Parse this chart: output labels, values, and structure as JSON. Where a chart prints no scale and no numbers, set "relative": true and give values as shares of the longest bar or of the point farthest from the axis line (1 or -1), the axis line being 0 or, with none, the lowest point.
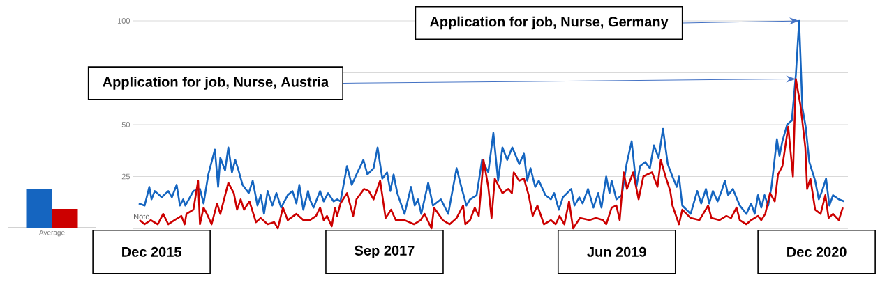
{
  "chart_data": [
    {
      "type": "line",
      "xlim": [
        "2015-10-10",
        "2021-02-25"
      ],
      "ylim": [
        0,
        100
      ],
      "xticks": [
        {
          "value": "2015-12-01",
          "label": "Dec 2015"
        },
        {
          "value": "2017-09-01",
          "label": "Sep 2017"
        },
        {
          "value": "2019-06-01",
          "label": "Jun 2019"
        },
        {
          "value": "2020-12-01",
          "label": "Dec 2020"
        }
      ],
      "yticks": [
        25,
        50,
        {
          "value": 75,
          "label": null
        },
        100
      ],
      "grid": "y",
      "annotations": [
        "Application for job, Nurse, Germany",
        "Application for job, Nurse, Austria",
        "Note"
      ],
      "series": [
        {
          "color": "#1565c0",
          "x": [
            "2015-10-27",
            "2015-11-12",
            "2015-11-25",
            "2015-12-01",
            "2015-12-10",
            "2015-12-29",
            "2016-01-16",
            "2016-01-26",
            "2016-02-08",
            "2016-02-17",
            "2016-02-26",
            "2016-03-03",
            "2016-03-25",
            "2016-04-12",
            "2016-04-22",
            "2016-05-05",
            "2016-05-23",
            "2016-06-01",
            "2016-06-07",
            "2016-06-20",
            "2016-06-29",
            "2016-07-09",
            "2016-07-18",
            "2016-07-27",
            "2016-08-07",
            "2016-08-24",
            "2016-09-04",
            "2016-09-17",
            "2016-09-26",
            "2016-10-05",
            "2016-10-15",
            "2016-10-28",
            "2016-11-08",
            "2016-11-21",
            "2016-12-09",
            "2016-12-22",
            "2017-01-02",
            "2017-01-10",
            "2017-01-21",
            "2017-02-03",
            "2017-02-08",
            "2017-02-18",
            "2017-03-08",
            "2017-03-18",
            "2017-03-30",
            "2017-04-14",
            "2017-04-24",
            "2017-05-03",
            "2017-05-21",
            "2017-06-03",
            "2017-06-16",
            "2017-07-05",
            "2017-07-16",
            "2017-08-02",
            "2017-08-13",
            "2017-08-26",
            "2017-09-08",
            "2017-09-17",
            "2017-09-26",
            "2017-10-06",
            "2017-10-26",
            "2017-11-13",
            "2017-11-23",
            "2017-12-02",
            "2017-12-11",
            "2017-12-30",
            "2018-01-12",
            "2018-02-03",
            "2018-02-23",
            "2018-03-18",
            "2018-03-31",
            "2018-04-14",
            "2018-04-24",
            "2018-05-12",
            "2018-05-27",
            "2018-06-13",
            "2018-06-27",
            "2018-07-10",
            "2018-07-22",
            "2018-08-04",
            "2018-08-18",
            "2018-09-06",
            "2018-09-19",
            "2018-09-28",
            "2018-10-07",
            "2018-10-20",
            "2018-10-30",
            "2018-11-17",
            "2018-12-02",
            "2018-12-11",
            "2018-12-24",
            "2019-01-04",
            "2019-01-27",
            "2019-02-05",
            "2019-02-18",
            "2019-02-27",
            "2019-03-14",
            "2019-03-29",
            "2019-04-11",
            "2019-04-20",
            "2019-05-03",
            "2019-05-12",
            "2019-05-18",
            "2019-05-31",
            "2019-06-15",
            "2019-06-28",
            "2019-07-12",
            "2019-07-25",
            "2019-08-04",
            "2019-08-18",
            "2019-08-31",
            "2019-09-11",
            "2019-09-24",
            "2019-10-06",
            "2019-10-19",
            "2019-11-01",
            "2019-11-13",
            "2019-11-19",
            "2019-11-28",
            "2019-12-21",
            "2020-01-08",
            "2020-01-19",
            "2020-02-01",
            "2020-02-10",
            "2020-02-20",
            "2020-03-04",
            "2020-03-15",
            "2020-03-24",
            "2020-04-02",
            "2020-04-15",
            "2020-05-04",
            "2020-05-22",
            "2020-06-04",
            "2020-06-14",
            "2020-06-23",
            "2020-07-02",
            "2020-07-11",
            "2020-07-21",
            "2020-07-30",
            "2020-08-14",
            "2020-08-21",
            "2020-08-29",
            "2020-09-11",
            "2020-09-24",
            "2020-10-05",
            "2020-10-14",
            "2020-10-23",
            "2020-11-01",
            "2020-11-11",
            "2020-11-27",
            "2020-12-07",
            "2020-12-16",
            "2020-12-27",
            "2021-01-05",
            "2021-01-15",
            "2021-01-31",
            "2021-02-15"
          ],
          "values": [
            12,
            11,
            20,
            14,
            18,
            15,
            18,
            15,
            21,
            11,
            14,
            11,
            18,
            19,
            12,
            26,
            38,
            20,
            34,
            28,
            39,
            27,
            33,
            28,
            21,
            17,
            23,
            11,
            16,
            7,
            18,
            11,
            17,
            10,
            16,
            18,
            12,
            21,
            9,
            18,
            14,
            10,
            18,
            13,
            17,
            13,
            14,
            13,
            30,
            21,
            26,
            33,
            26,
            29,
            39,
            24,
            27,
            18,
            26,
            17,
            7,
            20,
            11,
            14,
            7,
            22,
            11,
            14,
            7,
            29,
            20,
            11,
            14,
            16,
            33,
            27,
            46,
            23,
            39,
            33,
            39,
            31,
            36,
            23,
            29,
            20,
            23,
            16,
            14,
            17,
            9,
            15,
            19,
            11,
            15,
            12,
            19,
            10,
            17,
            10,
            25,
            17,
            23,
            14,
            16,
            31,
            42,
            20,
            30,
            32,
            29,
            40,
            34,
            48,
            31,
            25,
            20,
            25,
            11,
            7,
            18,
            12,
            19,
            12,
            18,
            13,
            18,
            23,
            16,
            19,
            11,
            7,
            12,
            7,
            16,
            10,
            16,
            11,
            20,
            43,
            35,
            42,
            50,
            52,
            74,
            100,
            58,
            49,
            32,
            23,
            14,
            18,
            24,
            11,
            16,
            14,
            13
          ]
        },
        {
          "color": "#cc0000",
          "x": [
            "2015-10-29",
            "2015-11-12",
            "2015-11-29",
            "2015-12-18",
            "2016-01-02",
            "2016-01-16",
            "2016-02-02",
            "2016-02-21",
            "2016-03-01",
            "2016-03-06",
            "2016-03-25",
            "2016-04-07",
            "2016-04-12",
            "2016-04-22",
            "2016-05-01",
            "2016-05-14",
            "2016-05-29",
            "2016-06-07",
            "2016-06-29",
            "2016-07-14",
            "2016-07-23",
            "2016-08-02",
            "2016-08-11",
            "2016-08-26",
            "2016-09-13",
            "2016-09-26",
            "2016-10-15",
            "2016-11-02",
            "2016-11-12",
            "2016-11-26",
            "2016-12-09",
            "2017-01-02",
            "2017-01-21",
            "2017-02-08",
            "2017-02-25",
            "2017-03-08",
            "2017-03-18",
            "2017-03-27",
            "2017-04-09",
            "2017-04-18",
            "2017-04-24",
            "2017-05-03",
            "2017-05-21",
            "2017-06-07",
            "2017-06-16",
            "2017-07-07",
            "2017-07-20",
            "2017-08-02",
            "2017-08-20",
            "2017-09-04",
            "2017-09-19",
            "2017-10-02",
            "2017-10-26",
            "2017-11-21",
            "2017-12-09",
            "2017-12-20",
            "2018-01-08",
            "2018-01-15",
            "2018-02-08",
            "2018-02-27",
            "2018-03-18",
            "2018-04-05",
            "2018-04-11",
            "2018-04-24",
            "2018-05-07",
            "2018-05-18",
            "2018-05-31",
            "2018-06-13",
            "2018-06-22",
            "2018-07-01",
            "2018-07-22",
            "2018-08-07",
            "2018-08-17",
            "2018-08-22",
            "2018-09-06",
            "2018-09-19",
            "2018-10-02",
            "2018-10-13",
            "2018-10-26",
            "2018-11-13",
            "2018-12-02",
            "2018-12-15",
            "2018-12-26",
            "2019-01-08",
            "2019-01-21",
            "2019-02-01",
            "2019-02-20",
            "2019-03-18",
            "2019-04-05",
            "2019-04-24",
            "2019-05-03",
            "2019-05-18",
            "2019-05-31",
            "2019-06-09",
            "2019-06-20",
            "2019-06-29",
            "2019-07-16",
            "2019-07-31",
            "2019-08-13",
            "2019-08-24",
            "2019-09-06",
            "2019-09-21",
            "2019-09-30",
            "2019-10-13",
            "2019-10-26",
            "2019-11-01",
            "2019-11-19",
            "2019-11-28",
            "2019-12-21",
            "2020-01-14",
            "2020-02-07",
            "2020-02-16",
            "2020-03-09",
            "2020-03-28",
            "2020-04-10",
            "2020-04-25",
            "2020-05-04",
            "2020-05-22",
            "2020-06-04",
            "2020-06-23",
            "2020-07-02",
            "2020-07-13",
            "2020-07-26",
            "2020-08-08",
            "2020-08-17",
            "2020-08-29",
            "2020-09-14",
            "2020-09-27",
            "2020-10-05",
            "2020-10-18",
            "2020-10-31",
            "2020-11-05",
            "2020-11-14",
            "2020-11-27",
            "2020-12-12",
            "2020-12-25",
            "2021-01-03",
            "2021-01-15",
            "2021-01-31",
            "2021-02-11"
          ],
          "values": [
            4,
            2,
            4,
            2,
            7,
            2,
            4,
            6,
            2,
            7,
            9,
            23,
            2,
            10,
            7,
            2,
            12,
            7,
            22,
            17,
            9,
            14,
            9,
            13,
            3,
            5,
            2,
            3,
            0,
            10,
            4,
            7,
            4,
            4,
            6,
            10,
            4,
            6,
            1,
            10,
            6,
            12,
            17,
            6,
            14,
            19,
            18,
            14,
            23,
            5,
            9,
            4,
            4,
            2,
            4,
            7,
            0,
            10,
            4,
            2,
            5,
            11,
            2,
            4,
            10,
            6,
            33,
            20,
            5,
            24,
            17,
            19,
            17,
            27,
            23,
            24,
            16,
            6,
            11,
            2,
            4,
            2,
            6,
            2,
            13,
            0,
            5,
            4,
            5,
            4,
            2,
            10,
            11,
            4,
            27,
            19,
            27,
            14,
            25,
            26,
            27,
            20,
            33,
            25,
            18,
            11,
            2,
            9,
            5,
            4,
            11,
            5,
            4,
            6,
            5,
            10,
            4,
            2,
            4,
            6,
            4,
            7,
            17,
            13,
            26,
            30,
            49,
            25,
            72,
            59,
            39,
            19,
            24,
            9,
            7,
            16,
            5,
            7,
            4,
            10
          ]
        }
      ]
    },
    {
      "type": "bar",
      "relative": true,
      "categories": [
        "Average"
      ],
      "series": [
        {
          "color": "#1565c0",
          "values": [
            1
          ]
        },
        {
          "color": "#cc0000",
          "values": [
            0.49
          ]
        }
      ]
    }
  ]
}
